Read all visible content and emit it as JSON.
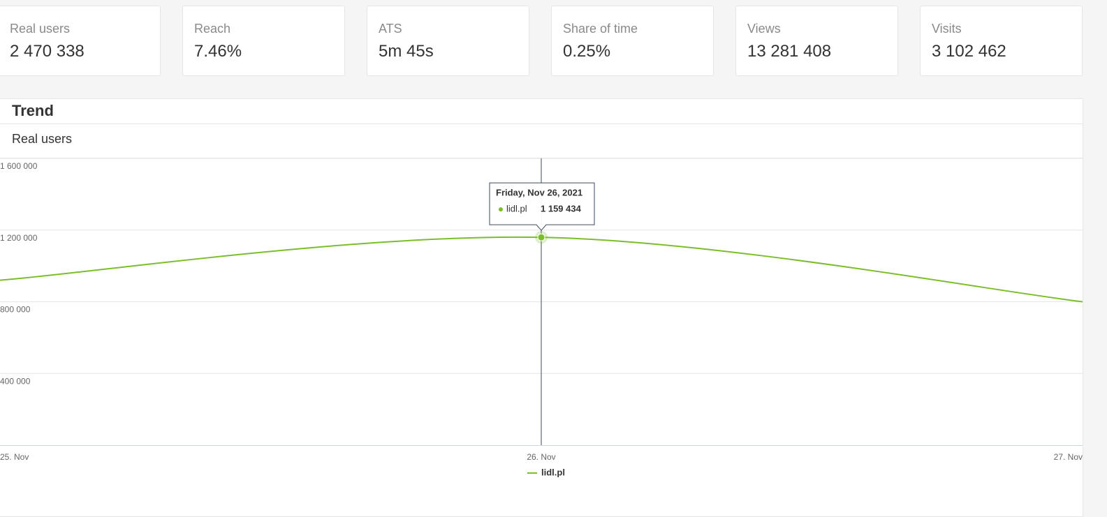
{
  "cards": [
    {
      "label": "Real users",
      "value": "2 470 338"
    },
    {
      "label": "Reach",
      "value": "7.46%"
    },
    {
      "label": "ATS",
      "value": "5m 45s"
    },
    {
      "label": "Share of time",
      "value": "0.25%"
    },
    {
      "label": "Views",
      "value": "13 281 408"
    },
    {
      "label": "Visits",
      "value": "3 102 462"
    }
  ],
  "panel": {
    "title": "Trend",
    "subtitle": "Real users"
  },
  "chart_data": {
    "type": "line",
    "categories": [
      "25. Nov",
      "26. Nov",
      "27. Nov"
    ],
    "series": [
      {
        "name": "lidl.pl",
        "color": "#7cbd2a",
        "values": [
          920000,
          1159434,
          800000
        ],
        "value_labels": [
          null,
          "1 159 434",
          null
        ]
      }
    ],
    "ylim": [
      0,
      1600000
    ],
    "yticks": [
      {
        "value": 400000,
        "label": "400 000"
      },
      {
        "value": 800000,
        "label": "800 000"
      },
      {
        "value": 1200000,
        "label": "1 200 000"
      },
      {
        "value": 1600000,
        "label": "1 600 000"
      }
    ],
    "grid": true,
    "legend": "bottom",
    "tooltip": {
      "title": "Friday, Nov 26, 2021"
    }
  }
}
